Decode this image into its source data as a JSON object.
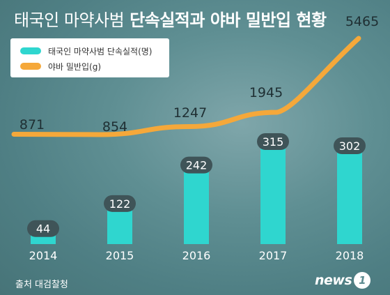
{
  "title": {
    "part1": "태국인 마약사범",
    "part2": "단속실적과 야바 밀반입 현황"
  },
  "colors": {
    "bar": "#2fd6cf",
    "line": "#f5a83a",
    "pill": "#3f5458",
    "text_dark": "#1f2f33"
  },
  "legend": {
    "items": [
      {
        "label": "태국인 마약사범 단속실적(명)",
        "color": "#2fd6cf"
      },
      {
        "label": "야바 밀반입(g)",
        "color": "#f5a83a"
      }
    ]
  },
  "chart_data": {
    "type": "bar",
    "categories": [
      "2014",
      "2015",
      "2016",
      "2017",
      "2018"
    ],
    "series": [
      {
        "name": "태국인 마약사범 단속실적(명)",
        "type": "bar",
        "values": [
          44,
          122,
          242,
          315,
          302
        ]
      },
      {
        "name": "야바 밀반입(g)",
        "type": "line",
        "values": [
          871,
          854,
          1247,
          1945,
          5465
        ]
      }
    ],
    "bar_ylim": [
      0,
      315
    ],
    "grid": false,
    "legend_position": "top-left"
  },
  "source": "출처 대검찰청",
  "logo": {
    "word": "news",
    "badge": "1"
  }
}
